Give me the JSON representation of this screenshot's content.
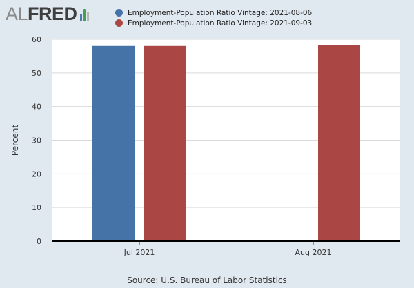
{
  "logo": {
    "part1": "AL",
    "part2": "FRED",
    "icon_colors": [
      "#4b79b0",
      "#4a9e54",
      "#b7b7b7"
    ]
  },
  "colors": {
    "background": "#e1e9f0",
    "plot_background": "#ffffff",
    "grid": "#d9d9d9",
    "axis": "#000000"
  },
  "source_text": "Source: U.S. Bureau of Labor Statistics",
  "chart_data": {
    "type": "bar",
    "categories": [
      "Jul 2021",
      "Aug 2021"
    ],
    "series": [
      {
        "name": "Employment-Population Ratio Vintage: 2021-08-06",
        "color": "#4572a7",
        "values": [
          58.0,
          null
        ]
      },
      {
        "name": "Employment-Population Ratio Vintage: 2021-09-03",
        "color": "#aa4643",
        "values": [
          58.0,
          58.3
        ]
      }
    ],
    "ylabel": "Percent",
    "ylim": [
      0,
      60
    ],
    "yticks": [
      0,
      10,
      20,
      30,
      40,
      50,
      60
    ],
    "grid": true,
    "legend_position": "top"
  }
}
